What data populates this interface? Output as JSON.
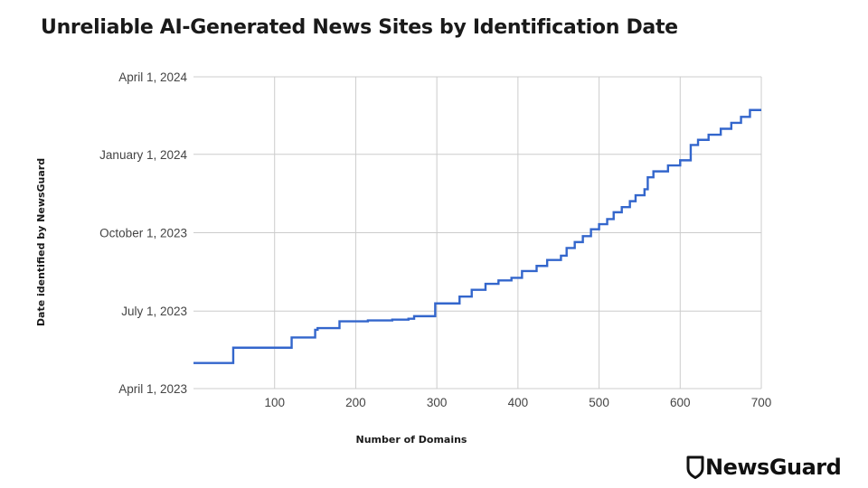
{
  "chart_data": {
    "type": "line",
    "title": "Unreliable AI-Generated News Sites by Identification Date",
    "xlabel": "Number of Domains",
    "ylabel": "Date identified by NewsGuard",
    "xlim": [
      0,
      700
    ],
    "ylim": [
      "2023-04-01",
      "2024-04-01"
    ],
    "x_ticks": [
      100,
      200,
      300,
      400,
      500,
      600,
      700
    ],
    "y_ticks": [
      {
        "date": "2023-04-01",
        "label": "April 1, 2023"
      },
      {
        "date": "2023-07-01",
        "label": "July 1, 2023"
      },
      {
        "date": "2023-10-01",
        "label": "October 1, 2023"
      },
      {
        "date": "2024-01-01",
        "label": "January 1, 2024"
      },
      {
        "date": "2024-04-01",
        "label": "April 1, 2024"
      }
    ],
    "grid": true,
    "line_color": "#3366cc",
    "series": [
      {
        "name": "Date identified",
        "step": true,
        "points": [
          [
            0,
            "2023-05-01"
          ],
          [
            49,
            "2023-05-19"
          ],
          [
            121,
            "2023-05-31"
          ],
          [
            150,
            "2023-06-09"
          ],
          [
            153,
            "2023-06-11"
          ],
          [
            180,
            "2023-06-19"
          ],
          [
            215,
            "2023-06-20"
          ],
          [
            245,
            "2023-06-21"
          ],
          [
            265,
            "2023-06-22"
          ],
          [
            272,
            "2023-06-25"
          ],
          [
            298,
            "2023-07-10"
          ],
          [
            328,
            "2023-07-18"
          ],
          [
            343,
            "2023-07-26"
          ],
          [
            360,
            "2023-08-02"
          ],
          [
            376,
            "2023-08-06"
          ],
          [
            392,
            "2023-08-09"
          ],
          [
            405,
            "2023-08-17"
          ],
          [
            423,
            "2023-08-23"
          ],
          [
            436,
            "2023-08-30"
          ],
          [
            453,
            "2023-09-04"
          ],
          [
            460,
            "2023-09-13"
          ],
          [
            470,
            "2023-09-20"
          ],
          [
            480,
            "2023-09-27"
          ],
          [
            490,
            "2023-10-05"
          ],
          [
            500,
            "2023-10-11"
          ],
          [
            510,
            "2023-10-17"
          ],
          [
            518,
            "2023-10-25"
          ],
          [
            528,
            "2023-10-31"
          ],
          [
            538,
            "2023-11-07"
          ],
          [
            545,
            "2023-11-14"
          ],
          [
            556,
            "2023-11-21"
          ],
          [
            560,
            "2023-12-05"
          ],
          [
            567,
            "2023-12-12"
          ],
          [
            585,
            "2023-12-19"
          ],
          [
            600,
            "2023-12-25"
          ],
          [
            613,
            "2024-01-12"
          ],
          [
            622,
            "2024-01-18"
          ],
          [
            635,
            "2024-01-24"
          ],
          [
            650,
            "2024-01-31"
          ],
          [
            663,
            "2024-02-07"
          ],
          [
            675,
            "2024-02-14"
          ],
          [
            686,
            "2024-02-22"
          ],
          [
            700,
            "2024-02-22"
          ]
        ]
      }
    ]
  },
  "branding": {
    "logo_text": "NewsGuard"
  }
}
